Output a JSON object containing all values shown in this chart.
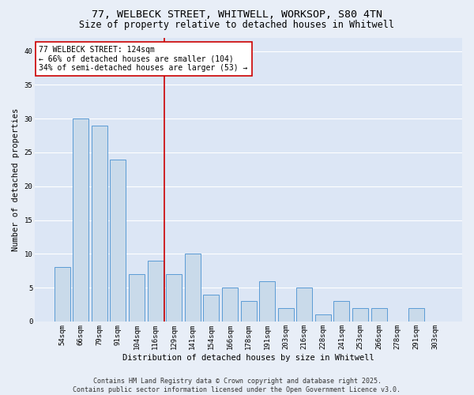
{
  "title_line1": "77, WELBECK STREET, WHITWELL, WORKSOP, S80 4TN",
  "title_line2": "Size of property relative to detached houses in Whitwell",
  "xlabel": "Distribution of detached houses by size in Whitwell",
  "ylabel": "Number of detached properties",
  "categories": [
    "54sqm",
    "66sqm",
    "79sqm",
    "91sqm",
    "104sqm",
    "116sqm",
    "129sqm",
    "141sqm",
    "154sqm",
    "166sqm",
    "178sqm",
    "191sqm",
    "203sqm",
    "216sqm",
    "228sqm",
    "241sqm",
    "253sqm",
    "266sqm",
    "278sqm",
    "291sqm",
    "303sqm"
  ],
  "values": [
    8,
    30,
    29,
    24,
    7,
    9,
    7,
    10,
    4,
    5,
    3,
    6,
    2,
    5,
    1,
    3,
    2,
    2,
    0,
    2,
    0
  ],
  "bar_color": "#c9daea",
  "bar_edge_color": "#5b9bd5",
  "vline_x": 6,
  "vline_color": "#cc0000",
  "annotation_text": "77 WELBECK STREET: 124sqm\n← 66% of detached houses are smaller (104)\n34% of semi-detached houses are larger (53) →",
  "annotation_box_color": "#ffffff",
  "annotation_box_edge": "#cc0000",
  "ylim": [
    0,
    42
  ],
  "yticks": [
    0,
    5,
    10,
    15,
    20,
    25,
    30,
    35,
    40
  ],
  "bg_color": "#e8eef7",
  "plot_bg_color": "#dce6f5",
  "footer_text": "Contains HM Land Registry data © Crown copyright and database right 2025.\nContains public sector information licensed under the Open Government Licence v3.0.",
  "title_fontsize": 9.5,
  "subtitle_fontsize": 8.5,
  "axis_label_fontsize": 7.5,
  "tick_fontsize": 6.5,
  "annotation_fontsize": 7,
  "footer_fontsize": 6
}
